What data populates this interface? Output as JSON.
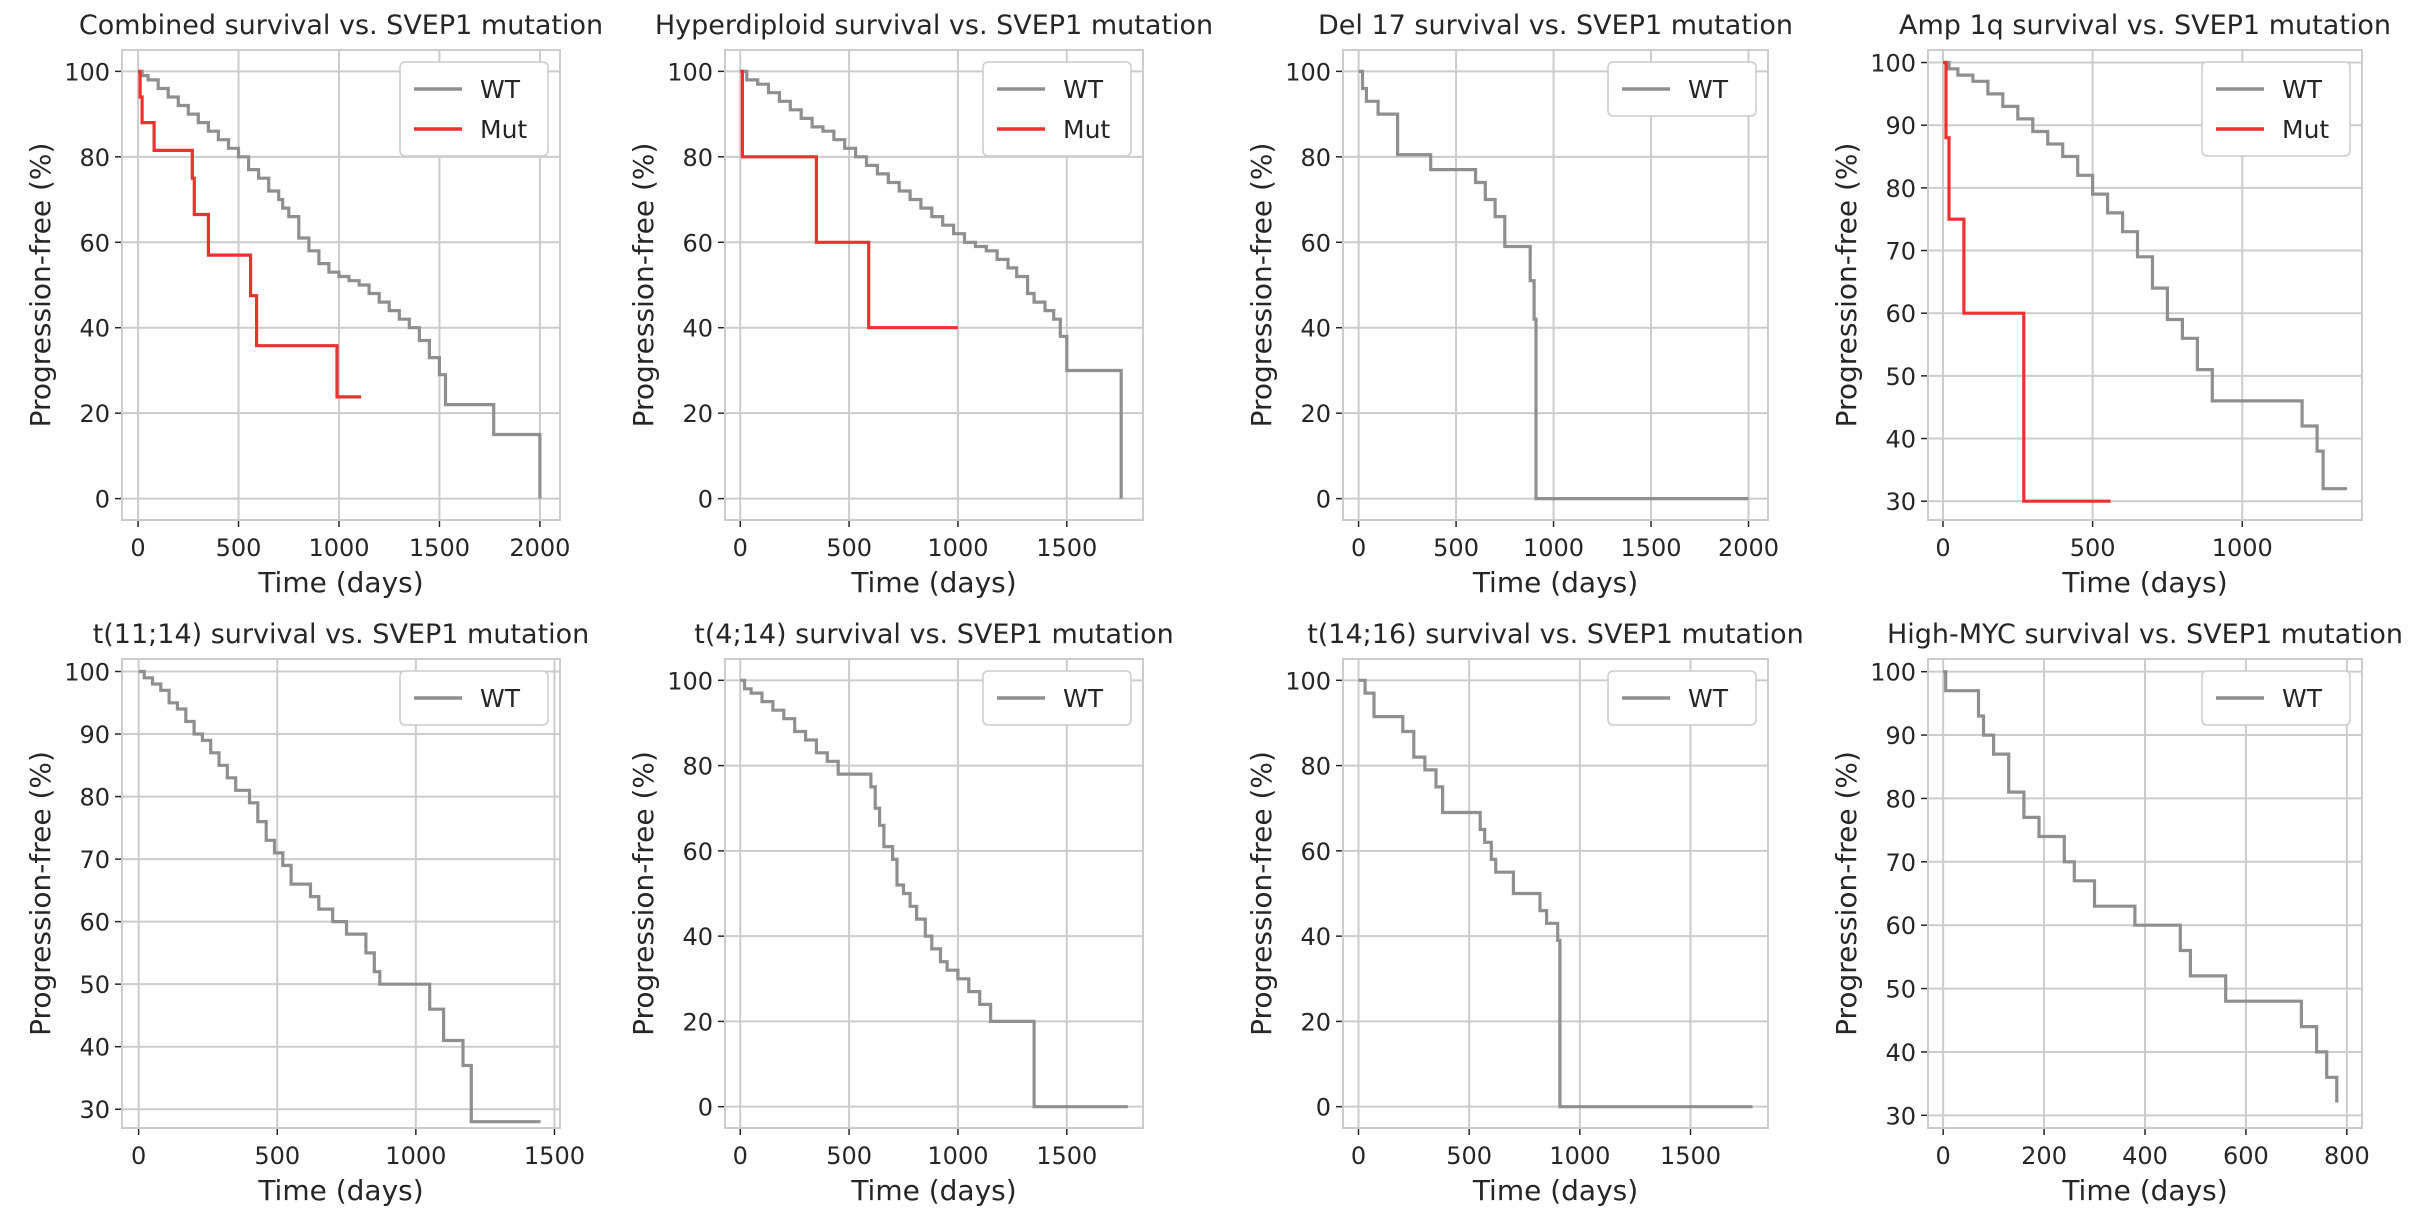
{
  "common": {
    "xlabel": "Time (days)",
    "ylabel": "Progression-free (%)",
    "colors": {
      "WT": "#8f8f8f",
      "Mut": "#ee3030",
      "grid": "#cccccc"
    }
  },
  "chart_data": [
    {
      "type": "line",
      "title": "Combined survival vs. SVEP1 mutation",
      "xlabel": "Time (days)",
      "ylabel": "Progression-free (%)",
      "xlim": [
        -80,
        2100
      ],
      "ylim": [
        -5,
        105
      ],
      "xticks": [
        0,
        500,
        1000,
        1500,
        2000
      ],
      "yticks": [
        0,
        20,
        40,
        60,
        80,
        100
      ],
      "legend": [
        "WT",
        "Mut"
      ],
      "legend_loc": "upper right",
      "series": [
        {
          "name": "WT",
          "x": [
            0,
            20,
            50,
            100,
            150,
            200,
            250,
            300,
            350,
            400,
            450,
            500,
            550,
            600,
            650,
            700,
            720,
            750,
            800,
            850,
            900,
            950,
            1000,
            1050,
            1100,
            1150,
            1200,
            1250,
            1300,
            1350,
            1400,
            1450,
            1500,
            1530,
            1750,
            1770,
            2000
          ],
          "y": [
            100,
            99,
            98,
            96,
            94,
            92,
            90,
            88,
            86,
            84,
            82,
            80,
            77,
            75,
            72,
            70,
            68,
            66,
            61,
            58,
            55,
            53,
            52,
            51,
            50,
            48,
            46,
            44,
            42,
            40,
            37,
            33,
            29,
            22,
            22,
            15,
            0
          ]
        },
        {
          "name": "Mut",
          "x": [
            0,
            10,
            20,
            80,
            270,
            280,
            350,
            560,
            590,
            990,
            1110
          ],
          "y": [
            100,
            94,
            88,
            81.5,
            75,
            66.5,
            57,
            47.5,
            35.8,
            23.8,
            23.8
          ]
        }
      ]
    },
    {
      "type": "line",
      "title": "Hyperdiploid survival vs. SVEP1 mutation",
      "xlabel": "Time (days)",
      "ylabel": "Progression-free (%)",
      "xlim": [
        -70,
        1850
      ],
      "ylim": [
        -5,
        105
      ],
      "xticks": [
        0,
        500,
        1000,
        1500
      ],
      "yticks": [
        0,
        20,
        40,
        60,
        80,
        100
      ],
      "legend": [
        "WT",
        "Mut"
      ],
      "legend_loc": "upper right",
      "series": [
        {
          "name": "WT",
          "x": [
            0,
            30,
            80,
            130,
            180,
            230,
            280,
            330,
            380,
            430,
            480,
            530,
            580,
            630,
            680,
            730,
            780,
            830,
            880,
            930,
            980,
            1030,
            1080,
            1130,
            1180,
            1230,
            1270,
            1320,
            1350,
            1400,
            1440,
            1470,
            1500,
            1750
          ],
          "y": [
            100,
            98,
            97,
            95,
            93,
            91,
            89,
            87,
            86,
            84,
            82,
            80,
            78,
            76,
            74,
            72,
            70,
            68,
            66,
            64,
            62,
            60,
            59,
            58,
            56,
            54,
            52,
            48,
            46,
            44,
            42,
            38,
            30,
            0
          ]
        },
        {
          "name": "Mut",
          "x": [
            0,
            10,
            350,
            590,
            1000
          ],
          "y": [
            100,
            80,
            60,
            40,
            40
          ]
        }
      ]
    },
    {
      "type": "line",
      "title": "Del 17 survival vs. SVEP1 mutation",
      "xlabel": "Time (days)",
      "ylabel": "Progression-free (%)",
      "xlim": [
        -80,
        2100
      ],
      "ylim": [
        -5,
        105
      ],
      "xticks": [
        0,
        500,
        1000,
        1500,
        2000
      ],
      "yticks": [
        0,
        20,
        40,
        60,
        80,
        100
      ],
      "legend": [
        "WT"
      ],
      "legend_loc": "upper right",
      "series": [
        {
          "name": "WT",
          "x": [
            0,
            20,
            40,
            100,
            200,
            370,
            600,
            650,
            700,
            750,
            880,
            900,
            910,
            2000
          ],
          "y": [
            100,
            96,
            93,
            90,
            80.5,
            77,
            74,
            70,
            66,
            59,
            51,
            42,
            0,
            0
          ]
        }
      ]
    },
    {
      "type": "line",
      "title": "Amp 1q survival vs. SVEP1 mutation",
      "xlabel": "Time (days)",
      "ylabel": "Progression-free (%)",
      "xlim": [
        -50,
        1400
      ],
      "ylim": [
        27,
        102
      ],
      "xticks": [
        0,
        500,
        1000
      ],
      "yticks": [
        30,
        40,
        50,
        60,
        70,
        80,
        90,
        100
      ],
      "legend": [
        "WT",
        "Mut"
      ],
      "legend_loc": "upper right",
      "series": [
        {
          "name": "WT",
          "x": [
            0,
            20,
            50,
            100,
            150,
            200,
            250,
            300,
            350,
            400,
            450,
            500,
            550,
            600,
            650,
            700,
            750,
            800,
            850,
            900,
            1200,
            1250,
            1270,
            1350
          ],
          "y": [
            100,
            99,
            98,
            97,
            95,
            93,
            91,
            89,
            87,
            85,
            82,
            79,
            76,
            73,
            69,
            64,
            59,
            56,
            51,
            46,
            42,
            38,
            32,
            32
          ]
        },
        {
          "name": "Mut",
          "x": [
            0,
            10,
            20,
            70,
            270,
            560
          ],
          "y": [
            100,
            88,
            75,
            60,
            30,
            30
          ]
        }
      ]
    },
    {
      "type": "line",
      "title": "t(11;14) survival vs. SVEP1 mutation",
      "xlabel": "Time (days)",
      "ylabel": "Progression-free (%)",
      "xlim": [
        -60,
        1520
      ],
      "ylim": [
        27,
        102
      ],
      "xticks": [
        0,
        500,
        1000,
        1500
      ],
      "yticks": [
        30,
        40,
        50,
        60,
        70,
        80,
        90,
        100
      ],
      "legend": [
        "WT"
      ],
      "legend_loc": "upper right",
      "series": [
        {
          "name": "WT",
          "x": [
            0,
            20,
            50,
            80,
            110,
            140,
            170,
            200,
            230,
            260,
            290,
            320,
            350,
            400,
            430,
            460,
            490,
            520,
            550,
            620,
            650,
            700,
            750,
            820,
            850,
            870,
            1050,
            1100,
            1170,
            1200,
            1450
          ],
          "y": [
            100,
            99,
            98,
            97,
            95,
            94,
            92,
            90,
            89,
            87,
            85,
            83,
            81,
            79,
            76,
            73,
            71,
            69,
            66,
            64,
            62,
            60,
            58,
            55,
            52,
            50,
            46,
            41,
            37,
            28,
            28
          ]
        }
      ]
    },
    {
      "type": "line",
      "title": "t(4;14) survival vs. SVEP1 mutation",
      "xlabel": "Time (days)",
      "ylabel": "Progression-free (%)",
      "xlim": [
        -70,
        1850
      ],
      "ylim": [
        -5,
        105
      ],
      "xticks": [
        0,
        500,
        1000,
        1500
      ],
      "yticks": [
        0,
        20,
        40,
        60,
        80,
        100
      ],
      "legend": [
        "WT"
      ],
      "legend_loc": "upper right",
      "series": [
        {
          "name": "WT",
          "x": [
            0,
            20,
            50,
            100,
            150,
            200,
            250,
            300,
            350,
            400,
            450,
            600,
            620,
            640,
            660,
            700,
            720,
            750,
            780,
            810,
            850,
            880,
            920,
            950,
            1000,
            1050,
            1100,
            1150,
            1350,
            1780
          ],
          "y": [
            100,
            98,
            97,
            95,
            93,
            91,
            88,
            86,
            83,
            81,
            78,
            75,
            70,
            66,
            61,
            58,
            52,
            50,
            47,
            44,
            40,
            37,
            34,
            32,
            30,
            27,
            24,
            20,
            0,
            0
          ]
        }
      ]
    },
    {
      "type": "line",
      "title": "t(14;16) survival vs. SVEP1 mutation",
      "xlabel": "Time (days)",
      "ylabel": "Progression-free (%)",
      "xlim": [
        -70,
        1850
      ],
      "ylim": [
        -5,
        105
      ],
      "xticks": [
        0,
        500,
        1000,
        1500
      ],
      "yticks": [
        0,
        20,
        40,
        60,
        80,
        100
      ],
      "legend": [
        "WT"
      ],
      "legend_loc": "upper right",
      "series": [
        {
          "name": "WT",
          "x": [
            0,
            30,
            70,
            200,
            250,
            300,
            350,
            380,
            550,
            570,
            600,
            620,
            700,
            820,
            850,
            900,
            910,
            1780
          ],
          "y": [
            100,
            97,
            91.5,
            88,
            82,
            79,
            75,
            69,
            65,
            62,
            58,
            55,
            50,
            46,
            43,
            39,
            0,
            0
          ]
        }
      ]
    },
    {
      "type": "line",
      "title": "High-MYC survival vs. SVEP1 mutation",
      "xlabel": "Time (days)",
      "ylabel": "Progression-free (%)",
      "xlim": [
        -30,
        830
      ],
      "ylim": [
        28,
        102
      ],
      "xticks": [
        0,
        200,
        400,
        600,
        800
      ],
      "yticks": [
        30,
        40,
        50,
        60,
        70,
        80,
        90,
        100
      ],
      "legend": [
        "WT"
      ],
      "legend_loc": "upper right",
      "series": [
        {
          "name": "WT",
          "x": [
            0,
            5,
            70,
            80,
            100,
            130,
            160,
            190,
            240,
            260,
            300,
            380,
            470,
            490,
            560,
            710,
            740,
            760,
            780
          ],
          "y": [
            100,
            97,
            93,
            90,
            87,
            81,
            77,
            74,
            70,
            67,
            63,
            60,
            56,
            52,
            48,
            44,
            40,
            36,
            32
          ]
        }
      ]
    }
  ]
}
